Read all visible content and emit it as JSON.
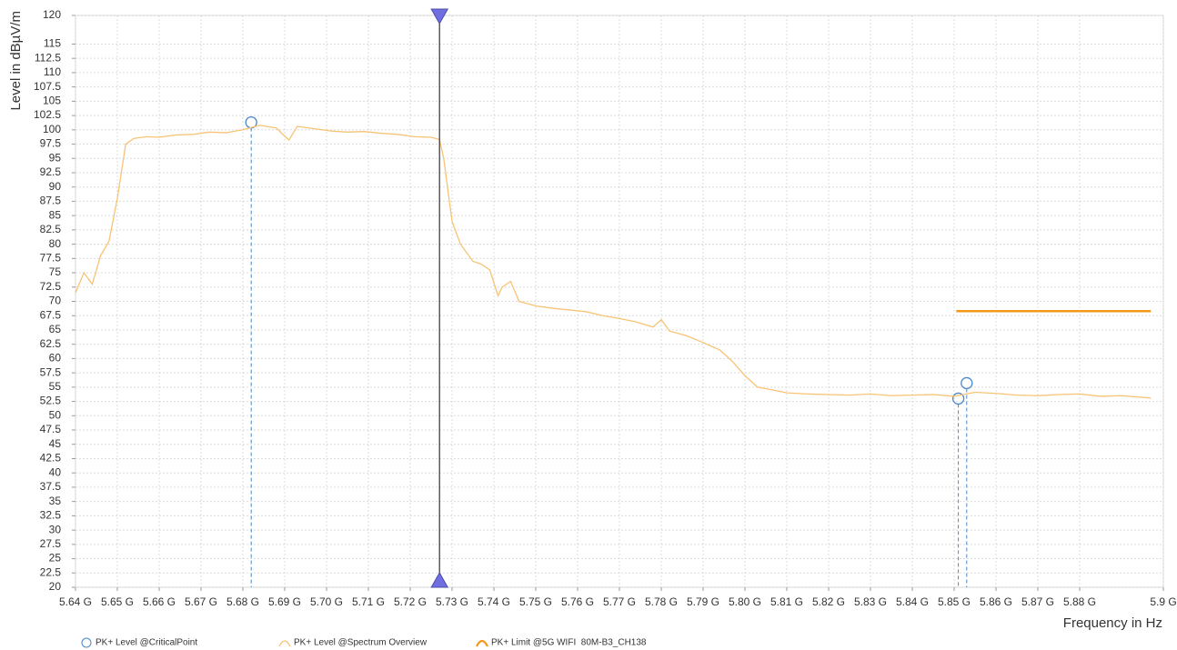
{
  "chart_data": {
    "type": "line",
    "ylabel": "Level in dBµV/m",
    "xlabel": "Frequency in Hz",
    "xlim": [
      5.64,
      5.9
    ],
    "ylim": [
      20,
      120
    ],
    "xticks": [
      {
        "value": 5.64,
        "label": "5.64 G"
      },
      {
        "value": 5.65,
        "label": "5.65 G"
      },
      {
        "value": 5.66,
        "label": "5.66 G"
      },
      {
        "value": 5.67,
        "label": "5.67 G"
      },
      {
        "value": 5.68,
        "label": "5.68 G"
      },
      {
        "value": 5.69,
        "label": "5.69 G"
      },
      {
        "value": 5.7,
        "label": "5.70 G"
      },
      {
        "value": 5.71,
        "label": "5.71 G"
      },
      {
        "value": 5.72,
        "label": "5.72 G"
      },
      {
        "value": 5.73,
        "label": "5.73 G"
      },
      {
        "value": 5.74,
        "label": "5.74 G"
      },
      {
        "value": 5.75,
        "label": "5.75 G"
      },
      {
        "value": 5.76,
        "label": "5.76 G"
      },
      {
        "value": 5.77,
        "label": "5.77 G"
      },
      {
        "value": 5.78,
        "label": "5.78 G"
      },
      {
        "value": 5.79,
        "label": "5.79 G"
      },
      {
        "value": 5.8,
        "label": "5.80 G"
      },
      {
        "value": 5.81,
        "label": "5.81 G"
      },
      {
        "value": 5.82,
        "label": "5.82 G"
      },
      {
        "value": 5.83,
        "label": "5.83 G"
      },
      {
        "value": 5.84,
        "label": "5.84 G"
      },
      {
        "value": 5.85,
        "label": "5.85 G"
      },
      {
        "value": 5.86,
        "label": "5.86 G"
      },
      {
        "value": 5.87,
        "label": "5.87 G"
      },
      {
        "value": 5.88,
        "label": "5.88 G"
      },
      {
        "value": 5.9,
        "label": "5.9 G"
      }
    ],
    "yticks": [
      20,
      22.5,
      25,
      27.5,
      30,
      32.5,
      35,
      37.5,
      40,
      42.5,
      45,
      47.5,
      50,
      52.5,
      55,
      57.5,
      60,
      62.5,
      65,
      67.5,
      70,
      72.5,
      75,
      77.5,
      80,
      82.5,
      85,
      87.5,
      90,
      92.5,
      95,
      97.5,
      100,
      102.5,
      105,
      107.5,
      110,
      112.5,
      115,
      120
    ],
    "grid": true,
    "cursor_x": 5.727,
    "cursor_color": "#333333",
    "cursor_marker_color": "#6f6fe0",
    "series": [
      {
        "name": "PK+ Level @CriticalPoint",
        "type": "scatter",
        "color": "#4a86c8",
        "x": [
          5.682,
          5.851,
          5.853
        ],
        "values": [
          101.3,
          53,
          55.7
        ]
      },
      {
        "name": "PK+ Level @Spectrum Overview",
        "type": "line",
        "color": "#f7c374",
        "x": [
          5.64,
          5.642,
          5.644,
          5.646,
          5.648,
          5.65,
          5.652,
          5.654,
          5.657,
          5.66,
          5.664,
          5.668,
          5.672,
          5.676,
          5.68,
          5.684,
          5.688,
          5.691,
          5.693,
          5.697,
          5.701,
          5.705,
          5.709,
          5.713,
          5.717,
          5.721,
          5.725,
          5.727,
          5.728,
          5.73,
          5.732,
          5.735,
          5.737,
          5.739,
          5.741,
          5.742,
          5.744,
          5.746,
          5.75,
          5.754,
          5.758,
          5.762,
          5.766,
          5.77,
          5.774,
          5.778,
          5.78,
          5.782,
          5.786,
          5.79,
          5.794,
          5.797,
          5.8,
          5.803,
          5.806,
          5.81,
          5.815,
          5.82,
          5.825,
          5.83,
          5.835,
          5.84,
          5.845,
          5.85,
          5.855,
          5.86,
          5.865,
          5.87,
          5.875,
          5.88,
          5.885,
          5.89,
          5.897
        ],
        "values": [
          71.5,
          75,
          73,
          78,
          80.5,
          88,
          97.5,
          98.5,
          98.8,
          98.7,
          99.1,
          99.2,
          99.6,
          99.5,
          100,
          100.8,
          100.3,
          98.2,
          100.6,
          100.2,
          99.8,
          99.6,
          99.7,
          99.4,
          99.2,
          98.8,
          98.7,
          98.3,
          95,
          84,
          80,
          77,
          76.5,
          75.5,
          71,
          72.5,
          73.5,
          70,
          69.2,
          68.8,
          68.5,
          68.2,
          67.5,
          67,
          66.4,
          65.5,
          66.8,
          64.8,
          64,
          62.8,
          61.5,
          59.5,
          57,
          55,
          54.6,
          54,
          53.8,
          53.7,
          53.6,
          53.8,
          53.5,
          53.6,
          53.7,
          53.4,
          54.1,
          53.9,
          53.6,
          53.5,
          53.7,
          53.8,
          53.4,
          53.5,
          53.1
        ]
      },
      {
        "name": "PK+ Limit @5G WIFI  80M-B3_CH138",
        "type": "limit",
        "color": "#f39a1e",
        "x": [
          5.8505,
          5.897
        ],
        "values": [
          68.3,
          68.3
        ]
      }
    ]
  }
}
